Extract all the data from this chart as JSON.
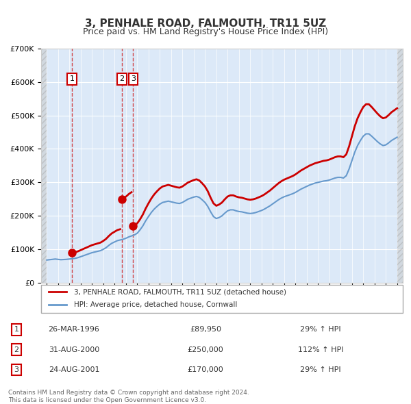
{
  "title": "3, PENHALE ROAD, FALMOUTH, TR11 5UZ",
  "subtitle": "Price paid vs. HM Land Registry's House Price Index (HPI)",
  "ylabel": "",
  "ylim": [
    0,
    700000
  ],
  "yticks": [
    0,
    100000,
    200000,
    300000,
    400000,
    500000,
    600000,
    700000
  ],
  "ytick_labels": [
    "£0",
    "£100K",
    "£200K",
    "£300K",
    "£400K",
    "£500K",
    "£600K",
    "£700K"
  ],
  "xlim_start": 1993.5,
  "xlim_end": 2025.5,
  "background_color": "#dce9f8",
  "plot_bg_color": "#dce9f8",
  "hatch_color": "#c0c0c0",
  "grid_color": "#ffffff",
  "red_line_color": "#cc0000",
  "blue_line_color": "#6699cc",
  "transactions": [
    {
      "num": 1,
      "year": 1996.23,
      "price": 89950,
      "label": "1"
    },
    {
      "num": 2,
      "year": 2000.66,
      "price": 250000,
      "label": "2"
    },
    {
      "num": 3,
      "year": 2001.65,
      "price": 170000,
      "label": "3"
    }
  ],
  "vline_color": "#cc0000",
  "legend_entries": [
    "3, PENHALE ROAD, FALMOUTH, TR11 5UZ (detached house)",
    "HPI: Average price, detached house, Cornwall"
  ],
  "table_rows": [
    {
      "num": "1",
      "date": "26-MAR-1996",
      "price": "£89,950",
      "hpi": "29% ↑ HPI"
    },
    {
      "num": "2",
      "date": "31-AUG-2000",
      "price": "£250,000",
      "hpi": "112% ↑ HPI"
    },
    {
      "num": "3",
      "date": "24-AUG-2001",
      "price": "£170,000",
      "hpi": "29% ↑ HPI"
    }
  ],
  "footer": "Contains HM Land Registry data © Crown copyright and database right 2024.\nThis data is licensed under the Open Government Licence v3.0.",
  "hpi_data": {
    "years": [
      1994.0,
      1994.25,
      1994.5,
      1994.75,
      1995.0,
      1995.25,
      1995.5,
      1995.75,
      1996.0,
      1996.25,
      1996.5,
      1996.75,
      1997.0,
      1997.25,
      1997.5,
      1997.75,
      1998.0,
      1998.25,
      1998.5,
      1998.75,
      1999.0,
      1999.25,
      1999.5,
      1999.75,
      2000.0,
      2000.25,
      2000.5,
      2000.75,
      2001.0,
      2001.25,
      2001.5,
      2001.75,
      2002.0,
      2002.25,
      2002.5,
      2002.75,
      2003.0,
      2003.25,
      2003.5,
      2003.75,
      2004.0,
      2004.25,
      2004.5,
      2004.75,
      2005.0,
      2005.25,
      2005.5,
      2005.75,
      2006.0,
      2006.25,
      2006.5,
      2006.75,
      2007.0,
      2007.25,
      2007.5,
      2007.75,
      2008.0,
      2008.25,
      2008.5,
      2008.75,
      2009.0,
      2009.25,
      2009.5,
      2009.75,
      2010.0,
      2010.25,
      2010.5,
      2010.75,
      2011.0,
      2011.25,
      2011.5,
      2011.75,
      2012.0,
      2012.25,
      2012.5,
      2012.75,
      2013.0,
      2013.25,
      2013.5,
      2013.75,
      2014.0,
      2014.25,
      2014.5,
      2014.75,
      2015.0,
      2015.25,
      2015.5,
      2015.75,
      2016.0,
      2016.25,
      2016.5,
      2016.75,
      2017.0,
      2017.25,
      2017.5,
      2017.75,
      2018.0,
      2018.25,
      2018.5,
      2018.75,
      2019.0,
      2019.25,
      2019.5,
      2019.75,
      2020.0,
      2020.25,
      2020.5,
      2020.75,
      2021.0,
      2021.25,
      2021.5,
      2021.75,
      2022.0,
      2022.25,
      2022.5,
      2022.75,
      2023.0,
      2023.25,
      2023.5,
      2023.75,
      2024.0,
      2024.25,
      2024.5,
      2024.75,
      2025.0
    ],
    "values": [
      68000,
      69000,
      70000,
      71000,
      70000,
      69000,
      69500,
      70000,
      71000,
      72000,
      73000,
      75000,
      78000,
      81000,
      84000,
      87000,
      90000,
      92000,
      94000,
      96000,
      100000,
      105000,
      112000,
      118000,
      122000,
      126000,
      128000,
      130000,
      133000,
      137000,
      140000,
      143000,
      148000,
      158000,
      170000,
      185000,
      198000,
      210000,
      220000,
      228000,
      235000,
      240000,
      242000,
      244000,
      242000,
      240000,
      238000,
      237000,
      240000,
      245000,
      250000,
      253000,
      256000,
      258000,
      255000,
      248000,
      240000,
      228000,
      212000,
      198000,
      192000,
      195000,
      200000,
      208000,
      215000,
      218000,
      218000,
      215000,
      213000,
      212000,
      210000,
      208000,
      207000,
      208000,
      210000,
      213000,
      216000,
      220000,
      225000,
      230000,
      236000,
      242000,
      248000,
      253000,
      257000,
      260000,
      263000,
      266000,
      270000,
      275000,
      280000,
      284000,
      288000,
      292000,
      295000,
      298000,
      300000,
      302000,
      304000,
      305000,
      307000,
      310000,
      313000,
      315000,
      315000,
      313000,
      320000,
      340000,
      365000,
      390000,
      410000,
      425000,
      438000,
      445000,
      445000,
      438000,
      430000,
      422000,
      415000,
      410000,
      412000,
      418000,
      425000,
      430000,
      435000
    ],
    "red_values": [
      null,
      null,
      null,
      null,
      null,
      null,
      null,
      null,
      null,
      null,
      null,
      null,
      null,
      null,
      null,
      null,
      null,
      null,
      null,
      null,
      null,
      null,
      null,
      null,
      null,
      null,
      null,
      null,
      null,
      null,
      null,
      null,
      null,
      null,
      null,
      null,
      null,
      null,
      null,
      null,
      null,
      null,
      null,
      null,
      null,
      null,
      null,
      null,
      null,
      null,
      null,
      null,
      null,
      null,
      null,
      null,
      null,
      null,
      null,
      null,
      null,
      null,
      null,
      null,
      null,
      null,
      null,
      null,
      null,
      null,
      null,
      null,
      null,
      null,
      null,
      null,
      null,
      null,
      null,
      null,
      null,
      null,
      null,
      null,
      null,
      null,
      null,
      null,
      null,
      null,
      null,
      null,
      null,
      null,
      null,
      null,
      null,
      null,
      null,
      null,
      null,
      null,
      null,
      null,
      null,
      null,
      null,
      null,
      null,
      null,
      null,
      null,
      null,
      null,
      null,
      null,
      null,
      null,
      null,
      null,
      null,
      null,
      null,
      null,
      null
    ]
  }
}
